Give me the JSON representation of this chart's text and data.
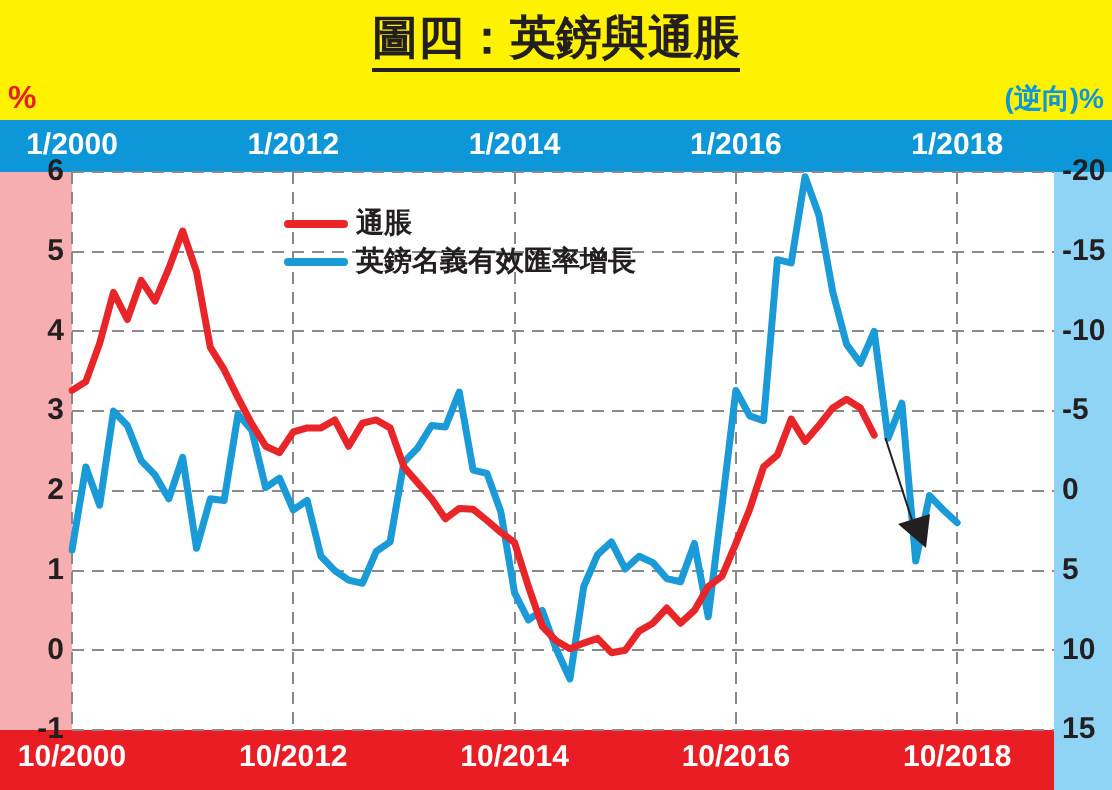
{
  "chart_data": {
    "type": "line",
    "title": "圖四：英鎊與通脹",
    "ylabel": "%",
    "y2label": "(逆向)%",
    "categories": [
      "10/2000",
      null,
      null,
      null,
      null,
      null,
      null,
      null,
      null,
      null,
      null,
      null,
      null,
      null,
      null,
      null,
      "10/2012",
      null,
      null,
      null,
      null,
      null,
      null,
      null,
      null,
      null,
      null,
      null,
      null,
      null,
      null,
      null,
      "10/2014",
      null,
      null,
      null,
      null,
      null,
      null,
      null,
      null,
      null,
      null,
      null,
      null,
      null,
      null,
      null,
      "10/2016",
      null,
      null,
      null,
      null,
      null,
      null,
      null,
      null,
      null,
      null,
      null,
      null,
      null,
      null,
      null,
      "10/2018",
      null,
      null,
      null,
      null,
      null,
      null,
      null
    ],
    "annotations": [
      "1/2000",
      "1/2012",
      "1/2014",
      "1/2016",
      "1/2018"
    ],
    "ylim": [
      -1,
      6
    ],
    "yticks": [
      -1,
      0,
      1,
      2,
      3,
      4,
      5,
      6
    ],
    "y2lim": [
      15,
      -20
    ],
    "y2ticks": [
      15,
      10,
      5,
      0,
      -5,
      -10,
      -15,
      -20
    ],
    "grid": true,
    "legend": "top left",
    "series": [
      {
        "name": "通脹",
        "color": "#e8262a",
        "values": [
          3.26,
          3.37,
          3.85,
          4.49,
          4.15,
          4.64,
          4.38,
          4.79,
          5.26,
          4.75,
          3.8,
          3.52,
          3.17,
          2.84,
          2.56,
          2.48,
          2.74,
          2.79,
          2.79,
          2.89,
          2.56,
          2.85,
          2.89,
          2.79,
          2.3,
          2.1,
          1.9,
          1.65,
          1.78,
          1.77,
          1.63,
          1.48,
          1.35,
          0.8,
          0.3,
          0.12,
          0.02,
          0.09,
          0.15,
          -0.03,
          0.0,
          0.24,
          0.34,
          0.53,
          0.34,
          0.5,
          0.8,
          0.93,
          1.34,
          1.77,
          2.3,
          2.45,
          2.9,
          2.62,
          2.82,
          3.04,
          3.15,
          3.04,
          2.7,
          null,
          null,
          null,
          null,
          null,
          null,
          null,
          null,
          null,
          null,
          null,
          null,
          null
        ]
      },
      {
        "name": "英鎊名義有效匯率增長",
        "color": "#1a9ad6",
        "axis": "y2",
        "values": [
          3.7,
          -1.5,
          0.9,
          -5.0,
          -4.1,
          -1.9,
          -1.0,
          0.5,
          -2.1,
          3.6,
          0.5,
          0.6,
          -4.8,
          -3.8,
          -0.2,
          -0.8,
          1.2,
          0.6,
          4.1,
          5.0,
          5.6,
          5.8,
          3.8,
          3.2,
          -1.8,
          -2.7,
          -4.1,
          -4.0,
          -6.2,
          -1.3,
          -1.1,
          1.3,
          6.4,
          8.1,
          7.5,
          9.9,
          11.8,
          6.0,
          4.0,
          3.2,
          4.9,
          4.1,
          4.5,
          5.5,
          5.7,
          3.3,
          7.9,
          0.9,
          -6.3,
          -4.7,
          -4.4,
          -14.5,
          -14.3,
          -19.7,
          -17.3,
          -12.5,
          -9.2,
          -8.0,
          -10.0,
          -3.3,
          -5.5,
          4.4,
          0.3,
          1.2,
          2.0,
          null,
          null,
          null,
          null,
          null,
          null,
          null
        ]
      }
    ]
  }
}
